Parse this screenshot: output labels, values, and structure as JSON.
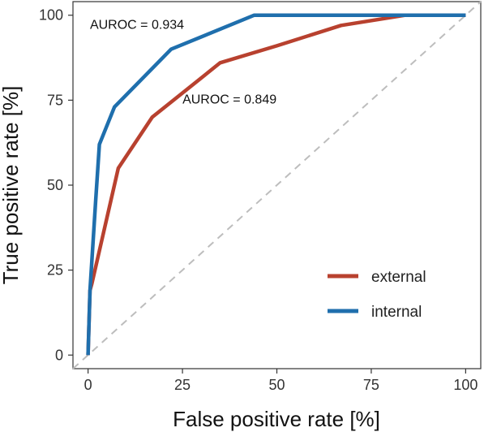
{
  "chart_data": {
    "type": "line",
    "title": "",
    "xlabel": "False positive rate [%]",
    "ylabel": "True positive rate [%]",
    "xlim": [
      -4,
      104
    ],
    "ylim": [
      -4,
      104
    ],
    "xticks": [
      0,
      25,
      50,
      75,
      100
    ],
    "yticks": [
      0,
      25,
      50,
      75,
      100
    ],
    "grid": false,
    "legend_position": "bottom-right",
    "reference_line": {
      "x": [
        0,
        100
      ],
      "y": [
        0,
        100
      ],
      "style": "dashed",
      "color": "#bdbdbd"
    },
    "series": [
      {
        "name": "external",
        "color": "#b8412f",
        "x": [
          0,
          0.5,
          1,
          8,
          17,
          35,
          50,
          67,
          84,
          100
        ],
        "y": [
          0,
          19,
          21,
          55,
          70,
          86,
          91,
          97,
          100,
          100
        ]
      },
      {
        "name": "internal",
        "color": "#1f6fad",
        "x": [
          0,
          0.5,
          2,
          3,
          7,
          22,
          44,
          100
        ],
        "y": [
          0,
          19,
          45,
          62,
          73,
          90,
          100,
          100
        ]
      }
    ],
    "annotations": [
      {
        "text": "AUROC = 0.934",
        "x": 0.5,
        "y": 96
      },
      {
        "text": "AUROC = 0.849",
        "x": 25,
        "y": 74
      }
    ]
  }
}
